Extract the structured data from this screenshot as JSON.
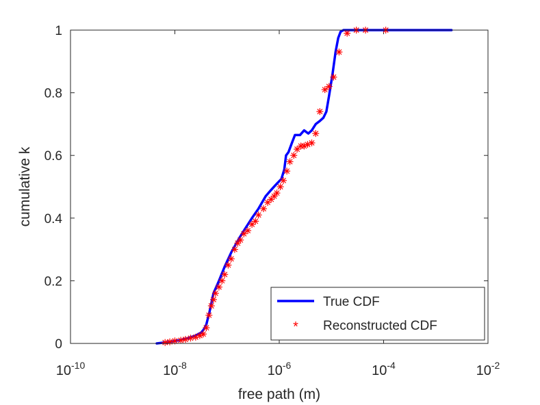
{
  "chart_data": {
    "type": "line",
    "xlabel": "free path (m)",
    "ylabel": "cumulative k",
    "xscale": "log",
    "xlim": [
      1e-10,
      0.01
    ],
    "ylim": [
      0,
      1
    ],
    "grid": false,
    "legend_position": "bottom-right",
    "x_ticks": [
      {
        "base": "10",
        "exp": "-10",
        "value": 1e-10
      },
      {
        "base": "10",
        "exp": "-8",
        "value": 1e-08
      },
      {
        "base": "10",
        "exp": "-6",
        "value": 1e-06
      },
      {
        "base": "10",
        "exp": "-4",
        "value": 0.0001
      },
      {
        "base": "10",
        "exp": "-2",
        "value": 0.01
      }
    ],
    "y_ticks": [
      {
        "label": "0",
        "value": 0
      },
      {
        "label": "0.2",
        "value": 0.2
      },
      {
        "label": "0.4",
        "value": 0.4
      },
      {
        "label": "0.6",
        "value": 0.6
      },
      {
        "label": "0.8",
        "value": 0.8
      },
      {
        "label": "1",
        "value": 1
      }
    ],
    "series": [
      {
        "name": "True CDF",
        "style": "line",
        "color": "#0000ff",
        "x": [
          4.5e-09,
          8e-09,
          1.2e-08,
          1.8e-08,
          2.5e-08,
          3.2e-08,
          3.6e-08,
          4e-08,
          4.6e-08,
          5.5e-08,
          7e-08,
          9e-08,
          1.2e-07,
          1.7e-07,
          2.2e-07,
          3e-07,
          4e-07,
          5.5e-07,
          7e-07,
          9e-07,
          1.1e-06,
          1.25e-06,
          1.35e-06,
          1.5e-06,
          1.75e-06,
          2e-06,
          2.5e-06,
          3e-06,
          3.6e-06,
          4.2e-06,
          5e-06,
          6e-06,
          7e-06,
          8e-06,
          9e-06,
          1.05e-05,
          1.2e-05,
          1.35e-05,
          1.5e-05,
          1.7e-05,
          2e-05,
          3e-05,
          0.0001,
          0.0005,
          0.002
        ],
        "y": [
          0,
          0.005,
          0.01,
          0.017,
          0.025,
          0.035,
          0.045,
          0.06,
          0.1,
          0.16,
          0.2,
          0.245,
          0.29,
          0.335,
          0.365,
          0.4,
          0.43,
          0.47,
          0.49,
          0.51,
          0.525,
          0.555,
          0.6,
          0.61,
          0.64,
          0.665,
          0.665,
          0.68,
          0.67,
          0.68,
          0.7,
          0.71,
          0.72,
          0.74,
          0.79,
          0.86,
          0.93,
          0.975,
          0.995,
          1,
          1,
          1,
          1,
          1,
          1
        ]
      },
      {
        "name": "Reconstructed CDF",
        "style": "marker",
        "marker": "*",
        "color": "#ff0000",
        "x": [
          6.5e-09,
          8e-09,
          1e-08,
          1.3e-08,
          1.6e-08,
          2e-08,
          2.5e-08,
          3e-08,
          3.5e-08,
          4e-08,
          4.5e-08,
          5e-08,
          5.5e-08,
          6e-08,
          7e-08,
          8e-08,
          9e-08,
          1.05e-07,
          1.2e-07,
          1.4e-07,
          1.6e-07,
          1.8e-07,
          2.1e-07,
          2.5e-07,
          3e-07,
          3.5e-07,
          4e-07,
          5e-07,
          6e-07,
          7e-07,
          8e-07,
          9e-07,
          1.05e-06,
          1.2e-06,
          1.4e-06,
          1.6e-06,
          1.9e-06,
          2.2e-06,
          2.6e-06,
          3e-06,
          3.5e-06,
          4.2e-06,
          5e-06,
          6e-06,
          7.5e-06,
          9e-06,
          1.1e-05,
          1.4e-05,
          2e-05,
          3e-05,
          4.5e-05,
          0.00011
        ],
        "y": [
          0.003,
          0.005,
          0.008,
          0.01,
          0.013,
          0.017,
          0.02,
          0.025,
          0.03,
          0.05,
          0.09,
          0.12,
          0.14,
          0.16,
          0.18,
          0.2,
          0.22,
          0.25,
          0.27,
          0.3,
          0.32,
          0.33,
          0.35,
          0.36,
          0.38,
          0.39,
          0.41,
          0.43,
          0.45,
          0.46,
          0.47,
          0.48,
          0.5,
          0.52,
          0.55,
          0.58,
          0.6,
          0.62,
          0.63,
          0.63,
          0.635,
          0.64,
          0.67,
          0.74,
          0.81,
          0.82,
          0.85,
          0.93,
          0.99,
          1.0,
          1.0,
          1.0
        ]
      }
    ]
  }
}
